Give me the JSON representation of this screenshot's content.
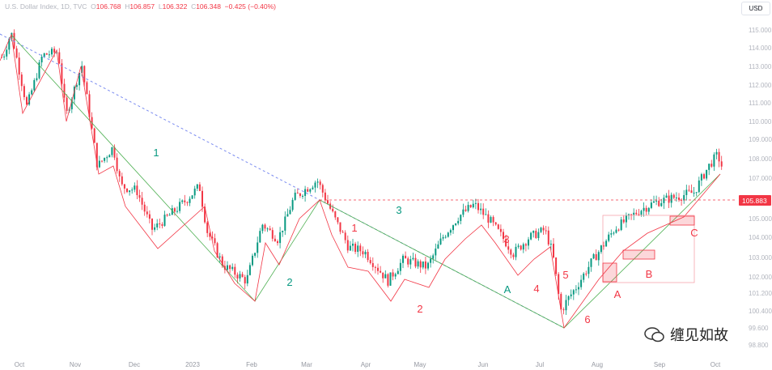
{
  "header": {
    "symbol": "U.S. Dollar Index, 1D, TVC",
    "open_label": "O",
    "open": "106.768",
    "high_label": "H",
    "high": "106.857",
    "low_label": "L",
    "low": "106.322",
    "close_label": "C",
    "close": "106.348",
    "change": "−0.425 (−0.40%)"
  },
  "currency": "USD",
  "watermark": "缠见如故",
  "chart_data": {
    "type": "candlestick",
    "title": "U.S. Dollar Index, 1D, TVC",
    "y_ticks": [
      "115.000",
      "114.000",
      "113.000",
      "112.000",
      "111.000",
      "110.000",
      "109.000",
      "108.000",
      "107.000",
      "105.000",
      "104.000",
      "103.000",
      "102.000",
      "101.200",
      "100.400",
      "99.600",
      "98.800"
    ],
    "x_ticks": [
      "Oct",
      "Nov",
      "Dec",
      "2023",
      "Feb",
      "Mar",
      "Apr",
      "May",
      "Jun",
      "Jul",
      "Aug",
      "Sep",
      "Oct"
    ],
    "last_price": "105.883",
    "price_path": [
      [
        0,
        113.5
      ],
      [
        1,
        114.9
      ],
      [
        3,
        110.8
      ],
      [
        5,
        113.6
      ],
      [
        7,
        113.8
      ],
      [
        8,
        110.3
      ],
      [
        10,
        113.1
      ],
      [
        12,
        107.6
      ],
      [
        14,
        108.6
      ],
      [
        15,
        106.6
      ],
      [
        17,
        106.4
      ],
      [
        19,
        104.4
      ],
      [
        21,
        105.1
      ],
      [
        23,
        105.8
      ],
      [
        25,
        106.6
      ],
      [
        26,
        104.3
      ],
      [
        28,
        102.6
      ],
      [
        31,
        101.8
      ],
      [
        33,
        104.7
      ],
      [
        35,
        103.9
      ],
      [
        37,
        106.0
      ],
      [
        40,
        106.9
      ],
      [
        42,
        105.2
      ],
      [
        44,
        103.5
      ],
      [
        46,
        103.3
      ],
      [
        49,
        101.8
      ],
      [
        51,
        102.9
      ],
      [
        54,
        102.5
      ],
      [
        56,
        104.0
      ],
      [
        58,
        105.1
      ],
      [
        60,
        105.7
      ],
      [
        62,
        104.9
      ],
      [
        65,
        103.2
      ],
      [
        67,
        104.0
      ],
      [
        69,
        104.4
      ],
      [
        70,
        103.2
      ],
      [
        71,
        100.4
      ],
      [
        73,
        101.5
      ],
      [
        75,
        102.8
      ],
      [
        78,
        104.5
      ],
      [
        81,
        105.4
      ],
      [
        83,
        105.8
      ],
      [
        86,
        106.1
      ],
      [
        88,
        106.3
      ],
      [
        90,
        107.7
      ],
      [
        91,
        108.2
      ],
      [
        92,
        107.1
      ]
    ],
    "waves_green": [
      "1",
      "2",
      "3",
      "A"
    ],
    "waves_red": [
      "1",
      "2",
      "3",
      "4",
      "5",
      "6",
      "A",
      "B",
      "C"
    ]
  }
}
